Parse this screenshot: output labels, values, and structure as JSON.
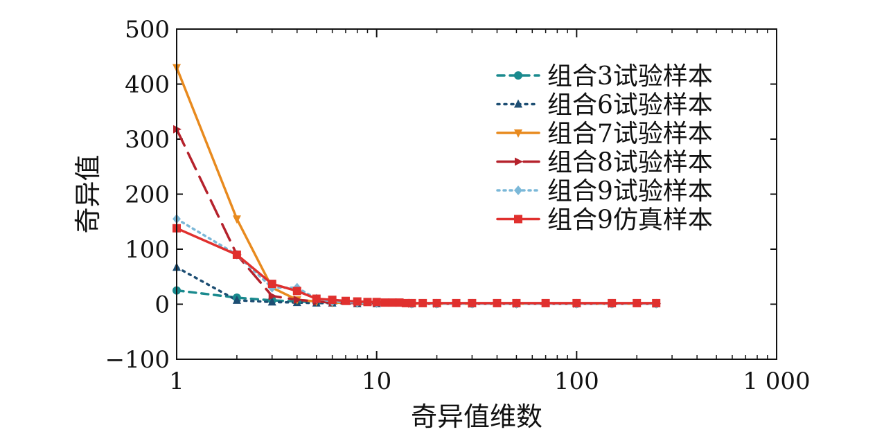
{
  "chart_data": {
    "type": "line",
    "xlabel": "奇异值维数",
    "ylabel": "奇异值",
    "x_scale": "log",
    "xlim": [
      1,
      1000
    ],
    "ylim": [
      -100,
      500
    ],
    "x_ticks": [
      1,
      10,
      100,
      1000
    ],
    "x_tick_labels": [
      "1",
      "10",
      "100",
      "1 000"
    ],
    "y_ticks": [
      -100,
      0,
      100,
      200,
      300,
      400,
      500
    ],
    "y_tick_labels": [
      "−100",
      "0",
      "100",
      "200",
      "300",
      "400",
      "500"
    ],
    "grid": false,
    "legend_position": "top-right",
    "series": [
      {
        "name": "组合3试验样本",
        "color": "#1a8a8e",
        "dash": "10,8",
        "marker": "circle",
        "x": [
          1,
          2,
          3,
          4,
          5,
          6,
          8,
          10,
          15,
          20,
          30,
          50,
          100,
          150,
          250
        ],
        "y": [
          25,
          12,
          7,
          5,
          4,
          3,
          2,
          2,
          1,
          1,
          1,
          1,
          1,
          1,
          1
        ]
      },
      {
        "name": "组合6试验样本",
        "color": "#1d4e73",
        "dash": "3,7",
        "marker": "triangle-up",
        "x": [
          1,
          2,
          3,
          4,
          5,
          6,
          8,
          10,
          15,
          20,
          30,
          50,
          100,
          150,
          250
        ],
        "y": [
          67,
          7,
          4,
          3,
          2,
          2,
          1,
          1,
          1,
          1,
          1,
          1,
          1,
          1,
          1
        ]
      },
      {
        "name": "组合7试验样本",
        "color": "#e88a1e",
        "dash": "",
        "marker": "triangle-down",
        "x": [
          1,
          2,
          3,
          4,
          5,
          6,
          8,
          10,
          15,
          20,
          30,
          50,
          100,
          150,
          250
        ],
        "y": [
          430,
          155,
          30,
          8,
          5,
          3,
          2,
          2,
          1,
          1,
          1,
          1,
          1,
          1,
          1
        ]
      },
      {
        "name": "组合8试验样本",
        "color": "#b5222c",
        "dash": "26,12",
        "marker": "triangle-right",
        "x": [
          1,
          2,
          3,
          4,
          5,
          6,
          8,
          10,
          15,
          20,
          30,
          50,
          100,
          150,
          250
        ],
        "y": [
          318,
          90,
          15,
          8,
          5,
          3,
          2,
          2,
          1,
          1,
          1,
          1,
          1,
          1,
          1
        ]
      },
      {
        "name": "组合9试验样本",
        "color": "#7bb8d8",
        "dash": "3,6",
        "marker": "diamond",
        "x": [
          1,
          2,
          3,
          4,
          5,
          6,
          8,
          10,
          15,
          20,
          30,
          50,
          100,
          150,
          250
        ],
        "y": [
          155,
          90,
          30,
          30,
          10,
          5,
          3,
          2,
          1,
          1,
          1,
          1,
          1,
          1,
          1
        ]
      },
      {
        "name": "组合9仿真样本",
        "color": "#e0302e",
        "dash": "",
        "marker": "square",
        "x": [
          1,
          2,
          3,
          4,
          5,
          6,
          7,
          8,
          9,
          10,
          11,
          12,
          13,
          14,
          15,
          17,
          20,
          25,
          30,
          40,
          50,
          70,
          100,
          150,
          200,
          250
        ],
        "y": [
          138,
          90,
          37,
          24,
          10,
          8,
          6,
          5,
          4,
          4,
          3,
          3,
          3,
          2,
          2,
          2,
          2,
          2,
          2,
          2,
          2,
          2,
          2,
          2,
          2,
          2
        ]
      }
    ]
  }
}
